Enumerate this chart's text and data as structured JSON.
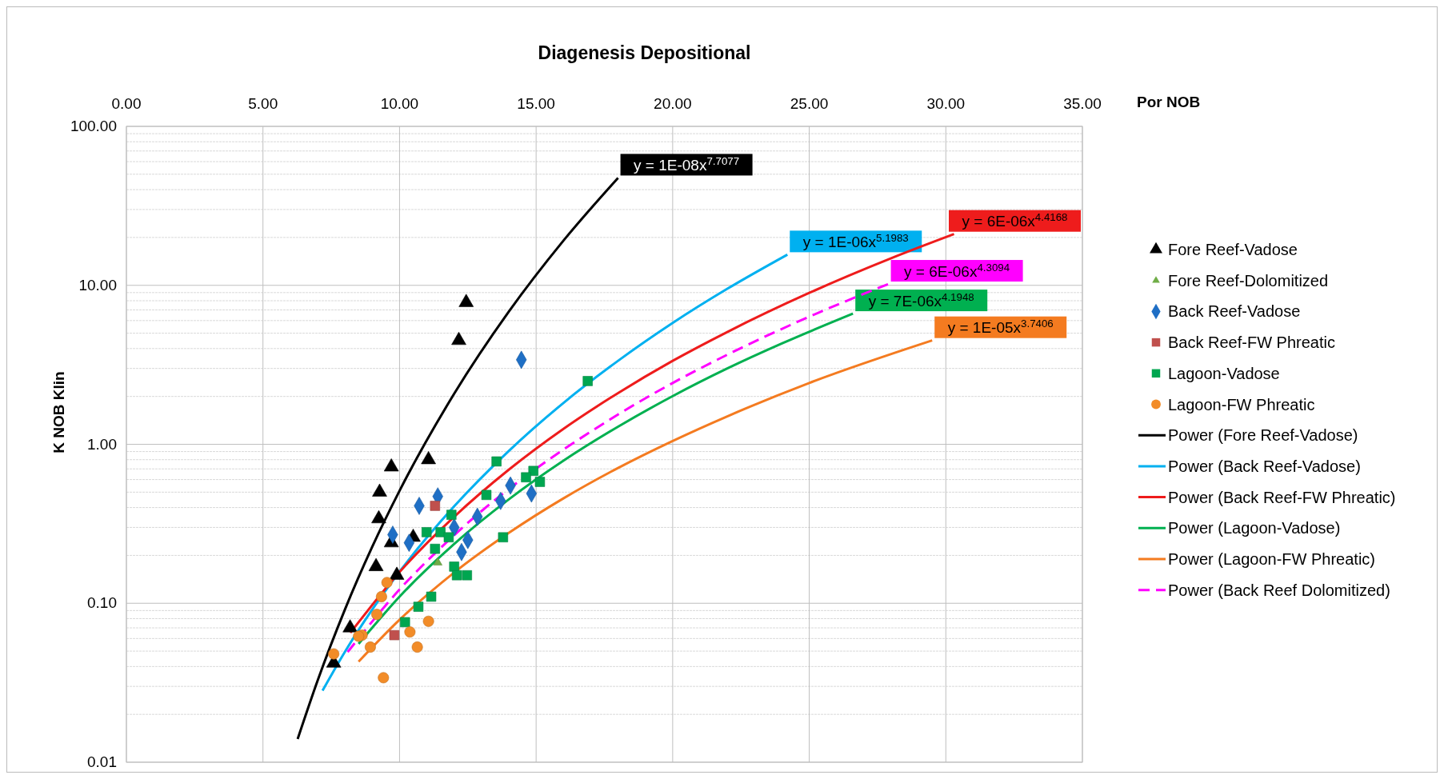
{
  "chart_data": {
    "type": "scatter",
    "title": "Diagenesis Depositional",
    "xlabel": "Por NOB",
    "ylabel": "K NOB Klin",
    "xlim": [
      0,
      35
    ],
    "xticks": [
      {
        "value": 0,
        "label": "0.00"
      },
      {
        "value": 5,
        "label": "5.00"
      },
      {
        "value": 10,
        "label": "10.00"
      },
      {
        "value": 15,
        "label": "15.00"
      },
      {
        "value": 20,
        "label": "20.00"
      },
      {
        "value": 25,
        "label": "25.00"
      },
      {
        "value": 30,
        "label": "30.00"
      },
      {
        "value": 35,
        "label": "35.00"
      }
    ],
    "ylim": [
      0.01,
      100
    ],
    "yticks": [
      {
        "value": 0.01,
        "label": "0.01"
      },
      {
        "value": 0.1,
        "label": "0.10"
      },
      {
        "value": 1,
        "label": "1.00"
      },
      {
        "value": 10,
        "label": "10.00"
      },
      {
        "value": 100,
        "label": "100.00"
      }
    ],
    "log": "y",
    "grid": true,
    "legend": "right",
    "series": [
      {
        "name": "Fore Reef-Vadose",
        "color": "#000000",
        "marker": "triangle",
        "x": [
          7.59,
          8.19,
          9.14,
          9.24,
          9.27,
          9.7,
          9.7,
          9.9,
          10.5,
          11.06,
          12.17,
          12.44
        ],
        "values": [
          0.042,
          0.07,
          0.17,
          0.34,
          0.5,
          0.72,
          0.24,
          0.15,
          0.26,
          0.8,
          4.5,
          7.8
        ]
      },
      {
        "name": "Fore Reef-Dolomitized",
        "color": "#70ad47",
        "marker": "triangle",
        "x": [
          11.4
        ],
        "values": [
          0.18
        ]
      },
      {
        "name": "Back Reef-Vadose",
        "color": "#1f6fc5",
        "marker": "diamond",
        "x": [
          14.46,
          10.72,
          11.4,
          9.75,
          10.35,
          12.0,
          12.85,
          12.5,
          12.27,
          13.7,
          14.06,
          14.83
        ],
        "values": [
          3.4,
          0.41,
          0.47,
          0.27,
          0.24,
          0.3,
          0.35,
          0.25,
          0.21,
          0.44,
          0.55,
          0.49
        ]
      },
      {
        "name": "Back Reef-FW Phreatic",
        "color": "#c0504d",
        "marker": "square",
        "x": [
          11.3,
          9.81
        ],
        "values": [
          0.41,
          0.063
        ]
      },
      {
        "name": "Lagoon-Vadose",
        "color": "#00a650",
        "marker": "square",
        "x": [
          16.89,
          13.55,
          14.9,
          14.63,
          15.14,
          13.18,
          11.9,
          10.99,
          11.5,
          11.8,
          11.3,
          13.79,
          12.0,
          12.1,
          12.47,
          11.16,
          10.69,
          10.2
        ],
        "values": [
          2.5,
          0.78,
          0.68,
          0.62,
          0.58,
          0.48,
          0.36,
          0.28,
          0.28,
          0.26,
          0.22,
          0.26,
          0.17,
          0.15,
          0.15,
          0.11,
          0.095,
          0.076
        ]
      },
      {
        "name": "Lagoon-FW Phreatic",
        "color": "#f28c28",
        "marker": "circle",
        "x": [
          9.54,
          9.34,
          9.17,
          11.06,
          8.63,
          10.38,
          8.93,
          10.65,
          7.59,
          9.41,
          8.5
        ],
        "values": [
          0.135,
          0.11,
          0.085,
          0.077,
          0.063,
          0.066,
          0.053,
          0.053,
          0.048,
          0.034,
          0.062
        ]
      },
      {
        "name": "Power (Fore Reef-Vadose)",
        "type": "line",
        "color": "#000000",
        "line_style": "solid",
        "x": [
          6.27,
          7,
          8,
          9,
          10,
          12,
          14,
          16,
          18
        ],
        "values": [
          0.014,
          0.0326,
          0.0913,
          0.2265,
          0.51,
          2.08,
          6.83,
          19.1,
          47.4
        ]
      },
      {
        "name": "Power (Back Reef-Vadose)",
        "type": "line",
        "color": "#00b0f0",
        "line_style": "solid",
        "x": [
          7.18,
          8,
          9,
          10,
          12,
          14,
          16,
          18,
          20,
          22,
          24.2
        ],
        "values": [
          0.0282,
          0.0495,
          0.0913,
          0.158,
          0.407,
          0.908,
          1.82,
          3.35,
          5.8,
          9.51,
          15.6
        ]
      },
      {
        "name": "Power (Back Reef-FW Phreatic)",
        "type": "line",
        "color": "#ee1c1c",
        "line_style": "solid",
        "x": [
          8.2,
          10,
          12,
          14,
          16,
          18,
          20,
          22,
          25,
          28,
          30.3
        ],
        "values": [
          0.0652,
          0.157,
          0.35,
          0.692,
          1.25,
          2.1,
          3.35,
          5.09,
          8.96,
          14.8,
          21.0
        ]
      },
      {
        "name": "Power (Lagoon-Vadose)",
        "type": "line",
        "color": "#00b050",
        "line_style": "solid",
        "x": [
          8.5,
          10,
          12,
          14,
          16,
          18,
          20,
          22,
          24,
          26.6
        ],
        "values": [
          0.0555,
          0.11,
          0.236,
          0.45,
          0.788,
          1.29,
          2.01,
          3.0,
          4.31,
          6.64
        ]
      },
      {
        "name": "Power (Lagoon-FW Phreatic)",
        "type": "line",
        "color": "#f47b20",
        "line_style": "solid",
        "x": [
          8.5,
          10,
          12,
          14,
          16,
          18,
          20,
          22,
          25,
          29.5
        ],
        "values": [
          0.0429,
          0.0787,
          0.156,
          0.277,
          0.457,
          0.71,
          1.05,
          1.5,
          2.43,
          4.5
        ]
      },
      {
        "name": "Power (Back Reef Dolomitized)",
        "type": "line",
        "color": "#ff00ff",
        "line_style": "dashed",
        "x": [
          8.1,
          10,
          12,
          16,
          17,
          18,
          20,
          22,
          25,
          27.9
        ],
        "values": [
          0.0493,
          0.122,
          0.268,
          0.927,
          1.2,
          1.54,
          2.43,
          3.66,
          6.35,
          10.2
        ]
      }
    ],
    "annotations": [
      "y = 1E-08x$^{7.7077}$",
      "y = 1E-06x$^{5.1983}$",
      "y = 6E-06x$^{4.4168}$",
      "y = 7E-06x$^{4.1948}$",
      "y = 1E-05x$^{3.7406}$",
      "y = 6E-06x$^{4.3094}$"
    ]
  }
}
